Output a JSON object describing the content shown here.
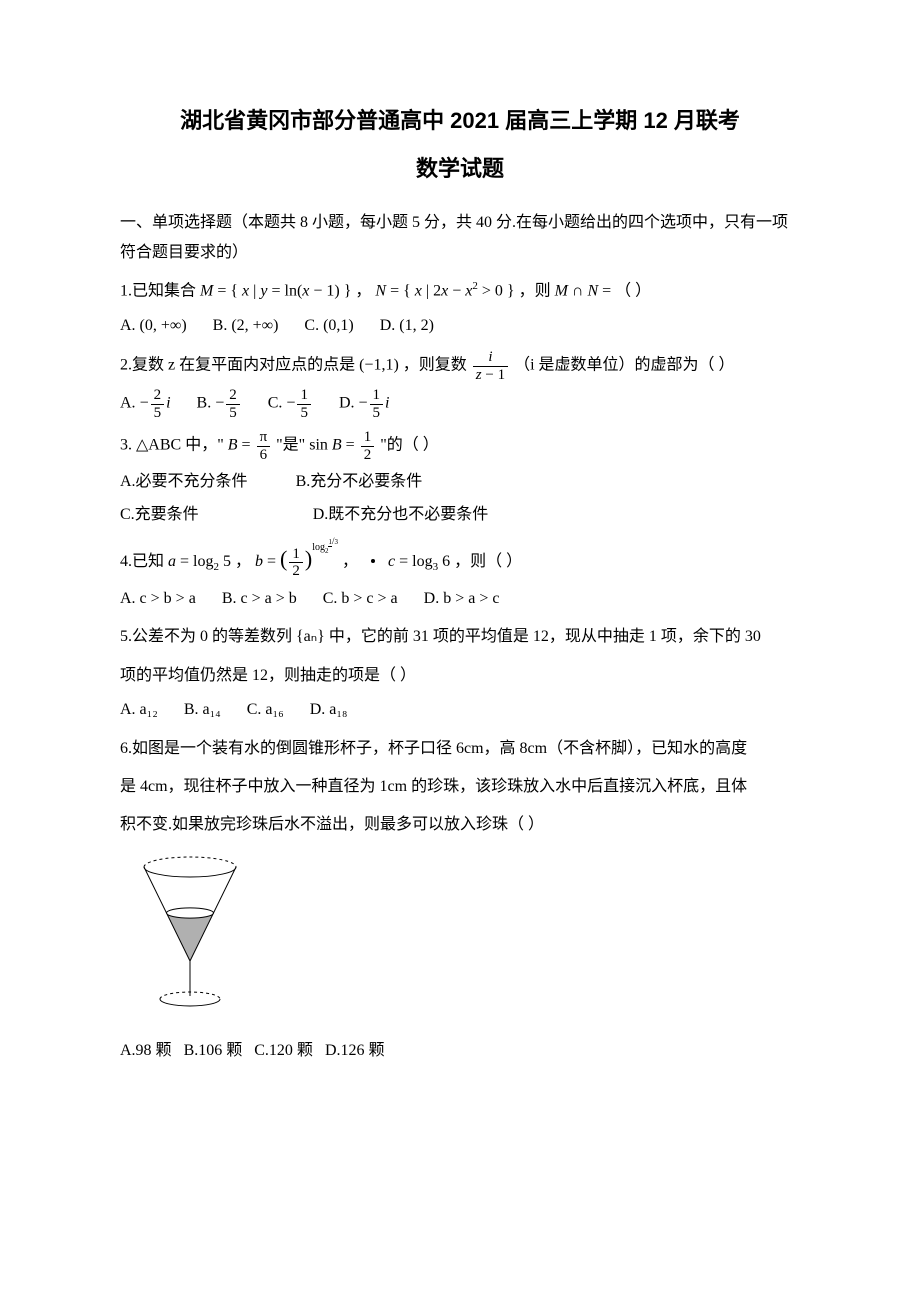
{
  "title": "湖北省黄冈市部分普通高中 2021 届高三上学期 12 月联考",
  "subtitle": "数学试题",
  "section1": "一、单项选择题（本题共 8 小题，每小题 5 分，共 40 分.在每小题给出的四个选项中，只有一项符合题目要求的）",
  "q1_label": "1.已知集合 ",
  "q1a": "，",
  "q1b": "，则 ",
  "q1c": "（        ）",
  "q1_optA": "A. (0, +∞)",
  "q1_optB": "B. (2, +∞)",
  "q1_optC": "C. (0,1)",
  "q1_optD": "D. (1, 2)",
  "q2_label": "2.复数 z 在复平面内对应点的点是 (−1,1) ，则复数 ",
  "q2_tail": "（i 是虚数单位）的虚部为（        ）",
  "q2_optA": "A.",
  "q2_optB": "B.",
  "q2_optC": "C.",
  "q2_optD": "D.",
  "q3_label": "3. △ABC 中，\" ",
  "q3_a": " \"是\" ",
  "q3_b": " \"的（        ）",
  "q3_optA": "A.必要不充分条件",
  "q3_optB": "B.充分不必要条件",
  "q3_optC": "C.充要条件",
  "q3_optD": "D.既不充分也不必要条件",
  "q4_label": "4.已知 ",
  "q4_sep": "，",
  "q4_tail": "，则（        ）",
  "q4_optA": "A. c > b > a",
  "q4_optB": "B. c > a > b",
  "q4_optC": "C. b > c > a",
  "q4_optD": "D. b > a > c",
  "q5_line1": "5.公差不为 0 的等差数列 {aₙ} 中，它的前 31 项的平均值是 12，现从中抽走 1 项，余下的 30",
  "q5_line2": "项的平均值仍然是 12，则抽走的项是（        ）",
  "q5_optA": "A. a₁₂",
  "q5_optB": "B. a₁₄",
  "q5_optC": "C. a₁₆",
  "q5_optD": "D. a₁₈",
  "q6_line1": "6.如图是一个装有水的倒圆锥形杯子，杯子口径 6cm，高 8cm（不含杯脚），已知水的高度",
  "q6_line2": "是 4cm，现往杯子中放入一种直径为 1cm 的珍珠，该珍珠放入水中后直接沉入杯底，且体",
  "q6_line3": "积不变.如果放完珍珠后水不溢出，则最多可以放入珍珠（        ）",
  "q6_optA": "A.98 颗",
  "q6_optB": "B.106 颗",
  "q6_optC": "C.120 颗",
  "q6_optD": "D.126 颗",
  "figure": {
    "width": 140,
    "height": 170,
    "cone_stroke": "#000000",
    "water_fill": "#b0b0b0",
    "ellipse_stroke": "#000000",
    "stem_stroke": "#000000"
  }
}
